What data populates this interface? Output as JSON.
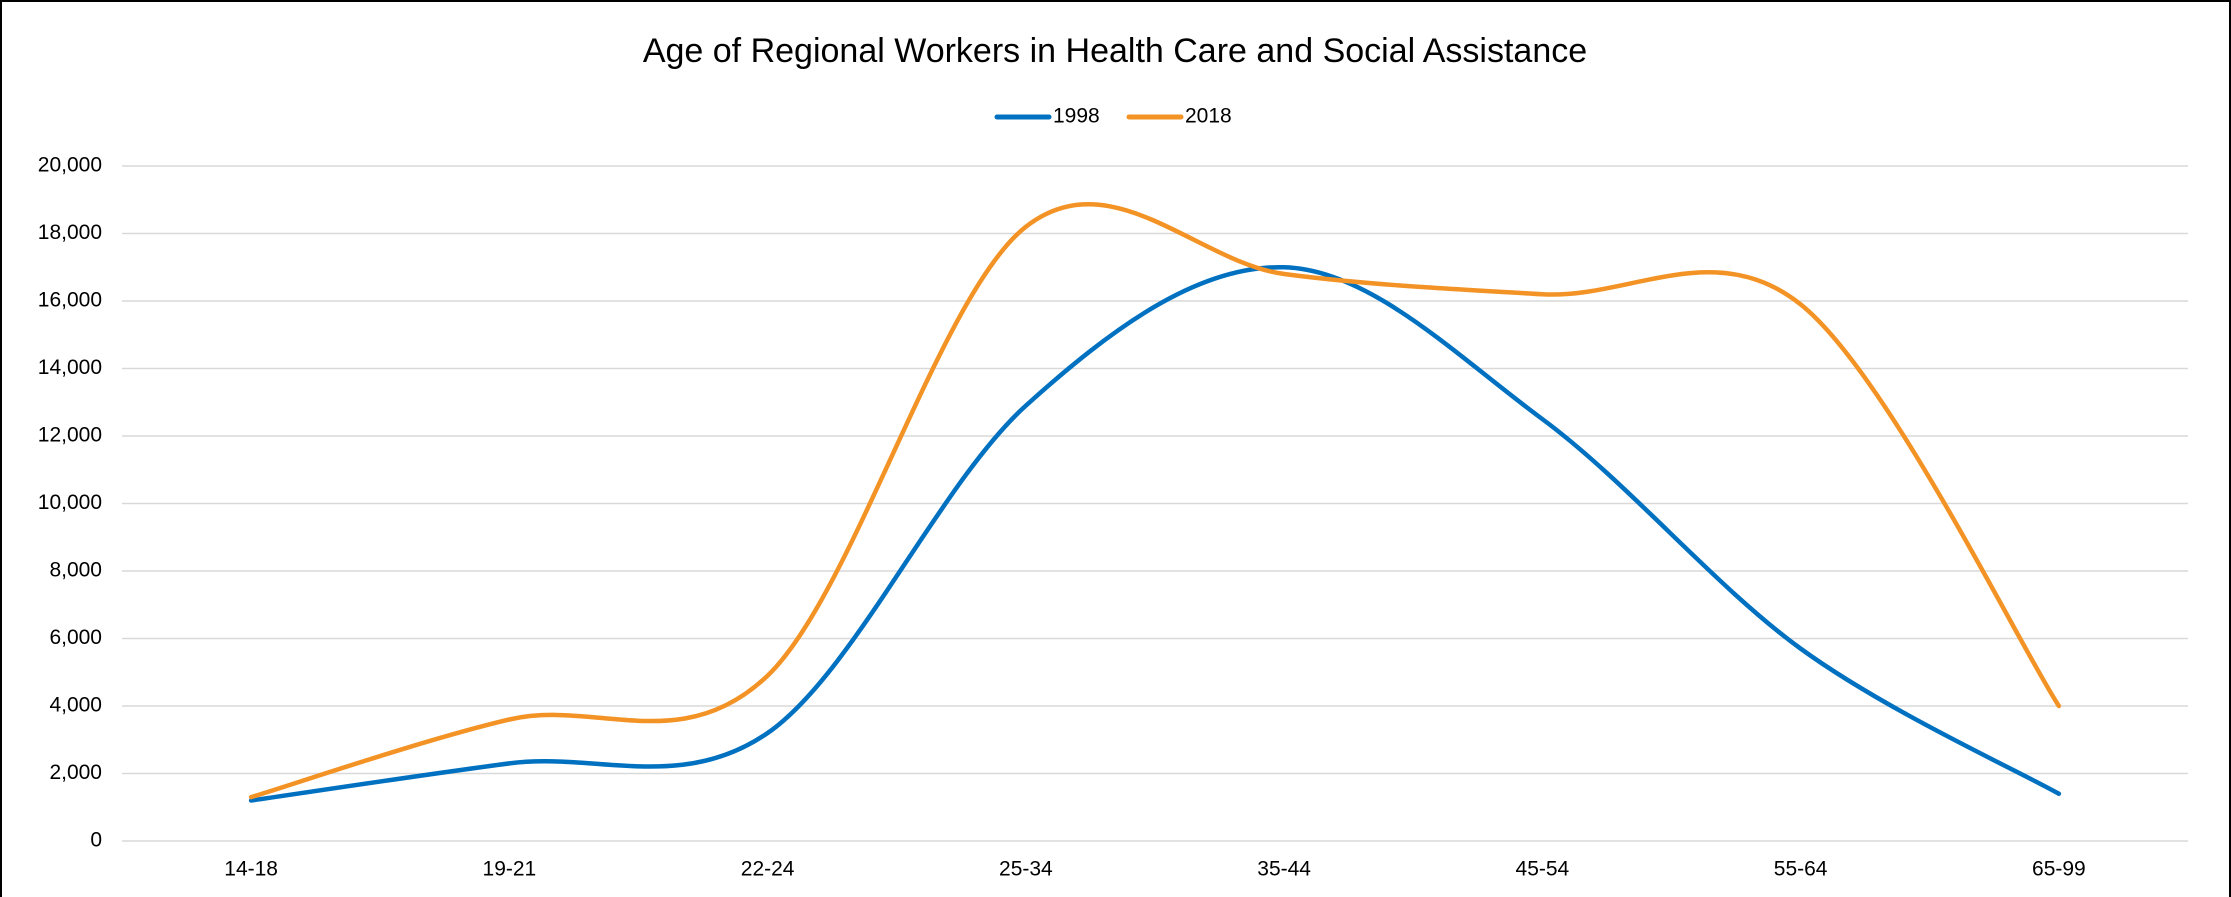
{
  "chart_data": {
    "type": "line",
    "title": "Age of Regional Workers in Health Care and Social Assistance",
    "categories": [
      "14-18",
      "19-21",
      "22-24",
      "25-34",
      "35-44",
      "45-54",
      "55-64",
      "65-99"
    ],
    "series": [
      {
        "name": "1998",
        "color": "#0070c0",
        "values": [
          1200,
          2300,
          3200,
          12900,
          17000,
          12500,
          5700,
          1400
        ]
      },
      {
        "name": "2018",
        "color": "#f39325",
        "values": [
          1300,
          3600,
          4900,
          18200,
          16800,
          16200,
          15900,
          4000
        ]
      }
    ],
    "ylim": [
      0,
      20000
    ],
    "yticks": [
      0,
      {
        "value": 2000,
        "label": "2,000"
      },
      {
        "value": 4000,
        "label": "4,000"
      },
      {
        "value": 6000,
        "label": "6,000"
      },
      {
        "value": 8000,
        "label": "8,000"
      },
      {
        "value": 10000,
        "label": "10,000"
      },
      {
        "value": 12000,
        "label": "12,000"
      },
      {
        "value": 14000,
        "label": "14,000"
      },
      {
        "value": 16000,
        "label": "16,000"
      },
      {
        "value": 18000,
        "label": "18,000"
      },
      {
        "value": 20000,
        "label": "20,000"
      }
    ],
    "grid": true,
    "smooth": true,
    "legend": "top"
  }
}
